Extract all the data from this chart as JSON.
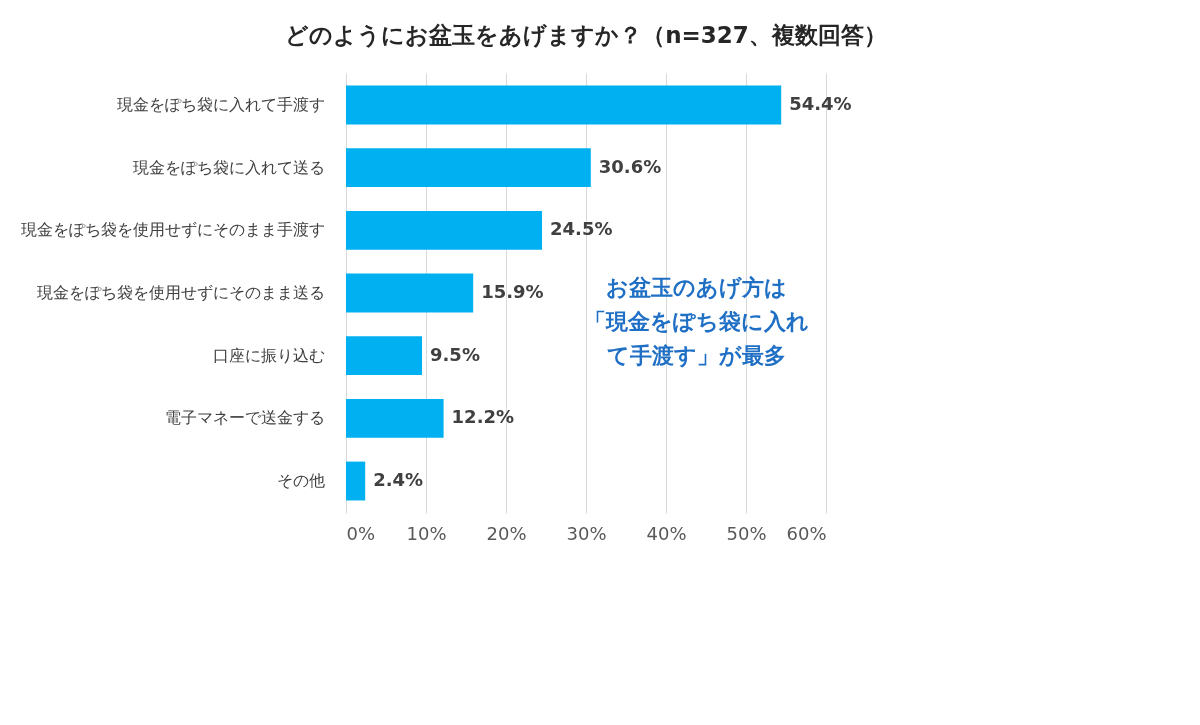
{
  "chart_data": {
    "type": "bar",
    "orientation": "horizontal",
    "title": "どのようにお盆玉をあげますか？（n=327、複数回答）",
    "categories": [
      "現金をぽち袋に入れて手渡す",
      "現金をぽち袋に入れて送る",
      "現金をぽち袋を使用せずにそのまま手渡す",
      "現金をぽち袋を使用せずにそのまま送る",
      "口座に振り込む",
      "電子マネーで送金する",
      "その他"
    ],
    "values": [
      54.4,
      30.6,
      24.5,
      15.9,
      9.5,
      12.2,
      2.4
    ],
    "value_labels": [
      "54.4%",
      "30.6%",
      "24.5%",
      "15.9%",
      "9.5%",
      "12.2%",
      "2.4%"
    ],
    "color": "#00b0f0",
    "xlim": [
      0,
      60
    ],
    "xticks": [
      {
        "value": 0,
        "label": "0%"
      },
      {
        "value": 10,
        "label": "10%"
      },
      {
        "value": 20,
        "label": "20%"
      },
      {
        "value": 30,
        "label": "30%"
      },
      {
        "value": 40,
        "label": "40%"
      },
      {
        "value": 50,
        "label": "50%"
      },
      {
        "value": 60,
        "label": "60%"
      }
    ],
    "grid": "x",
    "annotations": [
      "お盆玉のあげ方は「現金をぽち袋に入れて手渡す」が最多"
    ]
  }
}
